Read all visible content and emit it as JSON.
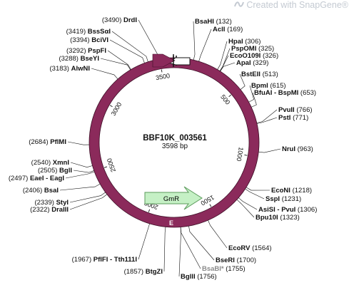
{
  "watermark": "Created with SnapGene®",
  "plasmid": {
    "name": "BBF10K_003561",
    "size_label": "3598 bp",
    "length": 3598
  },
  "colors": {
    "backbone": "#8b2a5b",
    "gmr_fill": "#c5f0c5",
    "gmr_stroke": "#5a9a5a",
    "line": "#111111",
    "faded": "#8a8a8a"
  },
  "features": [
    {
      "name": "E",
      "kind": "backbone-label"
    },
    {
      "name": "GmR",
      "kind": "cds"
    }
  ],
  "ticks": [
    "500",
    "1000",
    "1500",
    "2000",
    "2500",
    "3000",
    "3500"
  ],
  "sites": [
    {
      "name": "BsaHI",
      "pos": "(132)",
      "side": "right"
    },
    {
      "name": "AclI",
      "pos": "(169)",
      "side": "right"
    },
    {
      "name": "HpaI",
      "pos": "(306)",
      "side": "right"
    },
    {
      "name": "PspOMI",
      "pos": "(325)",
      "side": "right"
    },
    {
      "name": "EcoO109I",
      "pos": "(326)",
      "side": "right"
    },
    {
      "name": "ApaI",
      "pos": "(329)",
      "side": "right"
    },
    {
      "name": "BstEII",
      "pos": "(513)",
      "side": "right"
    },
    {
      "name": "BpmI",
      "pos": "(615)",
      "side": "right"
    },
    {
      "name": "BfuAI - BspMI",
      "pos": "(653)",
      "side": "right"
    },
    {
      "name": "PvuII",
      "pos": "(766)",
      "side": "right"
    },
    {
      "name": "PstI",
      "pos": "(771)",
      "side": "right"
    },
    {
      "name": "NruI",
      "pos": "(963)",
      "side": "right"
    },
    {
      "name": "EcoNI",
      "pos": "(1218)",
      "side": "right"
    },
    {
      "name": "SspI",
      "pos": "(1231)",
      "side": "right"
    },
    {
      "name": "AsiSI - PvuI",
      "pos": "(1306)",
      "side": "right"
    },
    {
      "name": "Bpu10I",
      "pos": "(1323)",
      "side": "right"
    },
    {
      "name": "EcoRV",
      "pos": "(1564)",
      "side": "right"
    },
    {
      "name": "BseRI",
      "pos": "(1700)",
      "side": "right"
    },
    {
      "name": "BsaBI*",
      "pos": "(1755)",
      "side": "right"
    },
    {
      "name": "BglII",
      "pos": "(1756)",
      "side": "right"
    },
    {
      "name": "BtgZI",
      "pos": "(1857)",
      "side": "left"
    },
    {
      "name": "PflFI - Tth111I",
      "pos": "(1967)",
      "side": "left"
    },
    {
      "name": "DraIII",
      "pos": "(2322)",
      "side": "left"
    },
    {
      "name": "StyI",
      "pos": "(2339)",
      "side": "left"
    },
    {
      "name": "BsaI",
      "pos": "(2406)",
      "side": "left"
    },
    {
      "name": "EaeI - EagI",
      "pos": "(2497)",
      "side": "left"
    },
    {
      "name": "BglI",
      "pos": "(2505)",
      "side": "left"
    },
    {
      "name": "XmnI",
      "pos": "(2540)",
      "side": "left"
    },
    {
      "name": "PflMI",
      "pos": "(2684)",
      "side": "left"
    },
    {
      "name": "AlwNI",
      "pos": "(3183)",
      "side": "left"
    },
    {
      "name": "BseYI",
      "pos": "(3288)",
      "side": "left"
    },
    {
      "name": "PspFI",
      "pos": "(3292)",
      "side": "left"
    },
    {
      "name": "BciVI",
      "pos": "(3394)",
      "side": "left"
    },
    {
      "name": "BssSαI",
      "pos": "(3419)",
      "side": "left"
    },
    {
      "name": "DrdI",
      "pos": "(3490)",
      "side": "left"
    }
  ]
}
